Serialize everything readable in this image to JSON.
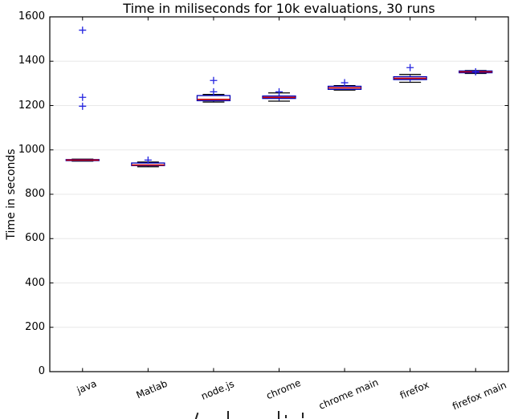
{
  "figure": {
    "title": "Time in miliseconds for 10k evaluations, 30 runs",
    "ylabel": "Time in seconds"
  },
  "chart_data": {
    "type": "boxplot",
    "title": "Time in miliseconds for 10k evaluations, 30 runs",
    "xlabel": "",
    "ylabel": "Time in seconds",
    "ylim": [
      0,
      1600
    ],
    "yticks": [
      0,
      200,
      400,
      600,
      800,
      1000,
      1200,
      1400,
      1600
    ],
    "grid": "horizontal",
    "legend": "none",
    "flier_marker": "+",
    "categories": [
      "java",
      "Matlab",
      "node.js",
      "chrome",
      "chrome main",
      "firefox",
      "firefox main"
    ],
    "series": [
      {
        "name": "java",
        "median": 954,
        "q1": 951.5,
        "q3": 956.5,
        "whisker_low": 949.5,
        "whisker_high": 958.5,
        "fliers": [
          1197,
          1237,
          1540
        ]
      },
      {
        "name": "Matlab",
        "median": 932,
        "q1": 929,
        "q3": 941,
        "whisker_low": 924,
        "whisker_high": 945,
        "fliers": [
          954
        ]
      },
      {
        "name": "node.js",
        "median": 1228,
        "q1": 1222,
        "q3": 1245,
        "whisker_low": 1216,
        "whisker_high": 1250,
        "fliers": [
          1262,
          1313
        ]
      },
      {
        "name": "chrome",
        "median": 1237,
        "q1": 1232,
        "q3": 1243,
        "whisker_low": 1220,
        "whisker_high": 1257,
        "fliers": [
          1262
        ]
      },
      {
        "name": "chrome main",
        "median": 1280,
        "q1": 1273,
        "q3": 1287,
        "whisker_low": 1270,
        "whisker_high": 1290,
        "fliers": [
          1303
        ]
      },
      {
        "name": "firefox",
        "median": 1323,
        "q1": 1317,
        "q3": 1330,
        "whisker_low": 1305,
        "whisker_high": 1340,
        "fliers": [
          1371
        ]
      },
      {
        "name": "firefox main",
        "median": 1352,
        "q1": 1348,
        "q3": 1356,
        "whisker_low": 1345,
        "whisker_high": 1358,
        "fliers": [
          1352
        ]
      }
    ],
    "colors": {
      "box": "#0000b8",
      "median": "#cc0000",
      "caps": "#000000",
      "whisker": "#2525e0",
      "flier": "#2525e0",
      "grid": "#e8e8e8",
      "spine": "#000000",
      "background": "#ffffff"
    }
  }
}
